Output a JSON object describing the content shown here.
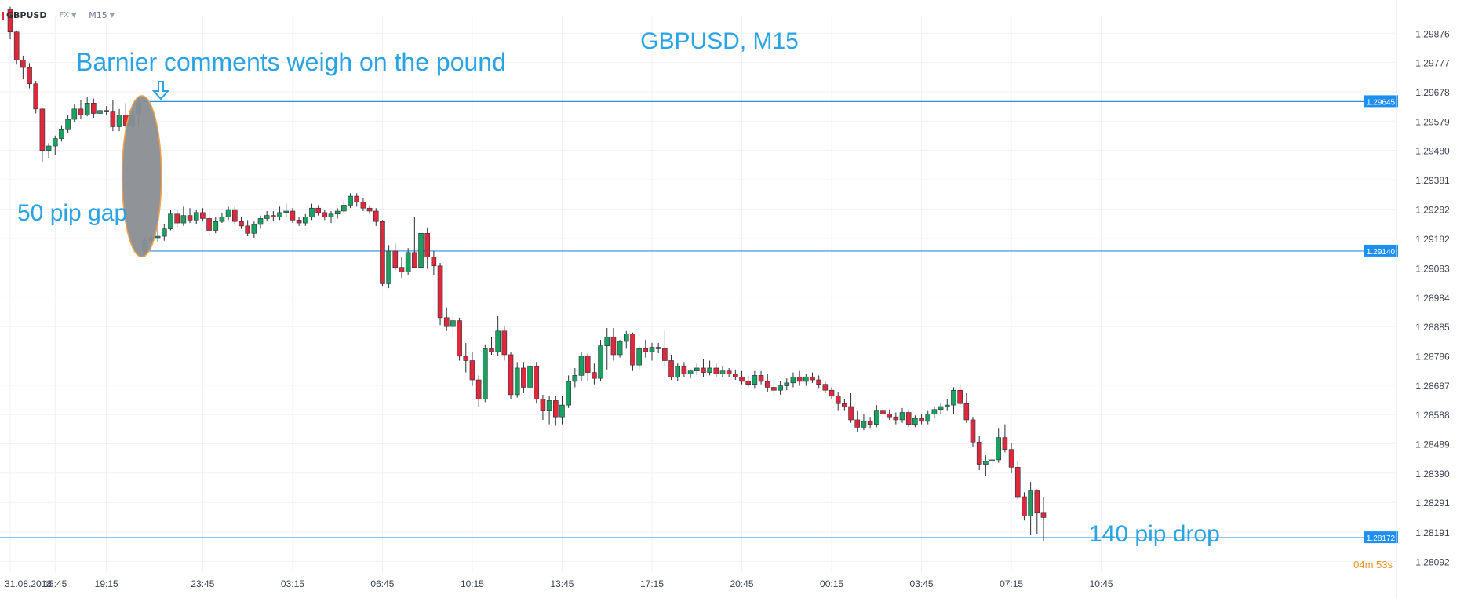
{
  "toolbar": {
    "symbol": "GBPUSD",
    "market": "FX",
    "timeframe": "M15"
  },
  "chart_data": {
    "type": "candlestick",
    "title": "GBPUSD, M15",
    "xlabel": "",
    "ylabel": "",
    "grid": true,
    "ylim": [
      1.28053,
      1.29935
    ],
    "y_ticks": [
      "1.29876",
      "1.29777",
      "1.29678",
      "1.29579",
      "1.29480",
      "1.29381",
      "1.29282",
      "1.29182",
      "1.29083",
      "1.28984",
      "1.28885",
      "1.28786",
      "1.28687",
      "1.28588",
      "1.28489",
      "1.28390",
      "1.28291",
      "1.28191",
      "1.28092"
    ],
    "x_ticks": [
      {
        "i": 0,
        "label": "31.08.2018"
      },
      {
        "i": 7,
        "label": "15:45"
      },
      {
        "i": 15,
        "label": "19:15"
      },
      {
        "i": 30,
        "label": "23:45"
      },
      {
        "i": 44,
        "label": "03:15"
      },
      {
        "i": 58,
        "label": "06:45"
      },
      {
        "i": 72,
        "label": "10:15"
      },
      {
        "i": 86,
        "label": "13:45"
      },
      {
        "i": 100,
        "label": "17:15"
      },
      {
        "i": 114,
        "label": "20:45"
      },
      {
        "i": 128,
        "label": "00:15"
      },
      {
        "i": 142,
        "label": "03:45"
      },
      {
        "i": 156,
        "label": "07:15"
      },
      {
        "i": 170,
        "label": "10:45"
      }
    ],
    "colors": {
      "up": "#1aa05f",
      "down": "#e0283c",
      "line": "#2b8de3",
      "annotation": "#29a3e3",
      "grid": "#f0f1f3",
      "countdown": "#f0901e",
      "ellipse_fill": "#8a8e93",
      "ellipse_stroke": "#f0a04a"
    },
    "hlines": [
      {
        "value": 1.29645,
        "label": "1.29645"
      },
      {
        "value": 1.2914,
        "label": "1.29140"
      },
      {
        "value": 1.28172,
        "label": "1.28172"
      }
    ],
    "countdown": "04m 53s",
    "annotations": [
      {
        "text": "Barnier comments weigh on the pound"
      },
      {
        "text": "50 pip gap"
      },
      {
        "text": "140 pip drop"
      }
    ],
    "gap_marker": {
      "candle_start": 20,
      "candle_end": 21,
      "top": 1.29665,
      "bottom": 1.2912
    },
    "candles": [
      [
        1.29955,
        1.29965,
        1.29855,
        1.2988
      ],
      [
        1.2988,
        1.29885,
        1.2977,
        1.29785
      ],
      [
        1.29785,
        1.298,
        1.2972,
        1.2976
      ],
      [
        1.2976,
        1.29775,
        1.2969,
        1.29705
      ],
      [
        1.29705,
        1.29715,
        1.29605,
        1.2962
      ],
      [
        1.2962,
        1.29625,
        1.2944,
        1.2948
      ],
      [
        1.2948,
        1.29505,
        1.29455,
        1.29495
      ],
      [
        1.29495,
        1.2953,
        1.29465,
        1.2952
      ],
      [
        1.2952,
        1.29565,
        1.2951,
        1.2955
      ],
      [
        1.2955,
        1.296,
        1.2954,
        1.29585
      ],
      [
        1.29585,
        1.29635,
        1.29575,
        1.2962
      ],
      [
        1.2962,
        1.2965,
        1.29585,
        1.296
      ],
      [
        1.296,
        1.2966,
        1.29595,
        1.2964
      ],
      [
        1.2964,
        1.29655,
        1.2959,
        1.29605
      ],
      [
        1.29605,
        1.29635,
        1.29595,
        1.29615
      ],
      [
        1.29615,
        1.2963,
        1.296,
        1.2961
      ],
      [
        1.2961,
        1.2965,
        1.29545,
        1.2956
      ],
      [
        1.2956,
        1.2962,
        1.29545,
        1.296
      ],
      [
        1.296,
        1.2964,
        1.29555,
        1.29565
      ],
      [
        1.29565,
        1.2961,
        1.29555,
        1.296
      ],
      [
        1.296,
        1.2966,
        1.2956,
        1.2964
      ],
      [
        1.2914,
        1.29185,
        1.2912,
        1.29175
      ],
      [
        1.29175,
        1.292,
        1.2916,
        1.29185
      ],
      [
        1.29185,
        1.29215,
        1.2917,
        1.2919
      ],
      [
        1.2919,
        1.2923,
        1.29175,
        1.29215
      ],
      [
        1.29215,
        1.2928,
        1.2921,
        1.29265
      ],
      [
        1.29265,
        1.2928,
        1.2922,
        1.29235
      ],
      [
        1.29235,
        1.2929,
        1.29225,
        1.2926
      ],
      [
        1.2926,
        1.29285,
        1.29235,
        1.29245
      ],
      [
        1.29245,
        1.2928,
        1.2923,
        1.2927
      ],
      [
        1.2927,
        1.29285,
        1.2924,
        1.2925
      ],
      [
        1.2925,
        1.29275,
        1.2919,
        1.2921
      ],
      [
        1.2921,
        1.29255,
        1.292,
        1.2924
      ],
      [
        1.2924,
        1.2927,
        1.29235,
        1.29255
      ],
      [
        1.29255,
        1.2929,
        1.29245,
        1.2928
      ],
      [
        1.2928,
        1.2929,
        1.2923,
        1.2924
      ],
      [
        1.2924,
        1.29255,
        1.29215,
        1.29225
      ],
      [
        1.29225,
        1.29245,
        1.2919,
        1.292
      ],
      [
        1.292,
        1.2924,
        1.29185,
        1.2923
      ],
      [
        1.2923,
        1.2926,
        1.29215,
        1.2925
      ],
      [
        1.2925,
        1.29275,
        1.2924,
        1.2926
      ],
      [
        1.2926,
        1.29275,
        1.2924,
        1.29255
      ],
      [
        1.29255,
        1.2929,
        1.29245,
        1.2927
      ],
      [
        1.2927,
        1.293,
        1.29255,
        1.29275
      ],
      [
        1.29275,
        1.29285,
        1.29235,
        1.29245
      ],
      [
        1.29245,
        1.29255,
        1.29225,
        1.29235
      ],
      [
        1.29235,
        1.29265,
        1.29225,
        1.29255
      ],
      [
        1.29255,
        1.293,
        1.29245,
        1.29285
      ],
      [
        1.29285,
        1.29295,
        1.2926,
        1.2927
      ],
      [
        1.2927,
        1.2928,
        1.29245,
        1.29255
      ],
      [
        1.29255,
        1.29275,
        1.29235,
        1.29265
      ],
      [
        1.29265,
        1.29285,
        1.2925,
        1.29275
      ],
      [
        1.29275,
        1.2931,
        1.29265,
        1.29295
      ],
      [
        1.29295,
        1.29335,
        1.29285,
        1.29325
      ],
      [
        1.29325,
        1.29335,
        1.2929,
        1.29305
      ],
      [
        1.29305,
        1.2932,
        1.29275,
        1.29285
      ],
      [
        1.29285,
        1.29295,
        1.29265,
        1.29275
      ],
      [
        1.29275,
        1.29285,
        1.29225,
        1.2924
      ],
      [
        1.2924,
        1.29245,
        1.2902,
        1.2903
      ],
      [
        1.2903,
        1.2916,
        1.29015,
        1.2914
      ],
      [
        1.2914,
        1.29165,
        1.29075,
        1.29085
      ],
      [
        1.29085,
        1.2912,
        1.2905,
        1.2907
      ],
      [
        1.2907,
        1.2915,
        1.2906,
        1.29135
      ],
      [
        1.29135,
        1.29255,
        1.29095,
        1.29085
      ],
      [
        1.29085,
        1.2923,
        1.29075,
        1.292
      ],
      [
        1.292,
        1.2922,
        1.2908,
        1.2912
      ],
      [
        1.2912,
        1.2914,
        1.2906,
        1.2909
      ],
      [
        1.2909,
        1.291,
        1.2889,
        1.28915
      ],
      [
        1.28915,
        1.2895,
        1.2887,
        1.28885
      ],
      [
        1.28885,
        1.28925,
        1.2885,
        1.28905
      ],
      [
        1.28905,
        1.28915,
        1.2877,
        1.28785
      ],
      [
        1.28785,
        1.2883,
        1.2873,
        1.2877
      ],
      [
        1.2877,
        1.288,
        1.28685,
        1.28705
      ],
      [
        1.28705,
        1.2872,
        1.28615,
        1.2864
      ],
      [
        1.2864,
        1.28825,
        1.2863,
        1.2881
      ],
      [
        1.2881,
        1.2885,
        1.2879,
        1.288
      ],
      [
        1.288,
        1.2892,
        1.28785,
        1.2887
      ],
      [
        1.2887,
        1.28885,
        1.2877,
        1.2879
      ],
      [
        1.2879,
        1.288,
        1.2864,
        1.28655
      ],
      [
        1.28655,
        1.28765,
        1.28645,
        1.28745
      ],
      [
        1.28745,
        1.28765,
        1.2866,
        1.2868
      ],
      [
        1.2868,
        1.28775,
        1.2866,
        1.2875
      ],
      [
        1.2875,
        1.28765,
        1.28625,
        1.2864
      ],
      [
        1.2864,
        1.28655,
        1.2857,
        1.286
      ],
      [
        1.286,
        1.2865,
        1.28555,
        1.28635
      ],
      [
        1.28635,
        1.2865,
        1.2855,
        1.2858
      ],
      [
        1.2858,
        1.2865,
        1.28555,
        1.2862
      ],
      [
        1.2862,
        1.2872,
        1.2861,
        1.287
      ],
      [
        1.287,
        1.28745,
        1.2868,
        1.2872
      ],
      [
        1.2872,
        1.288,
        1.287,
        1.28785
      ],
      [
        1.28785,
        1.28795,
        1.287,
        1.2873
      ],
      [
        1.2873,
        1.2876,
        1.2869,
        1.2871
      ],
      [
        1.2871,
        1.2884,
        1.287,
        1.2882
      ],
      [
        1.2882,
        1.2888,
        1.2874,
        1.2885
      ],
      [
        1.2885,
        1.2888,
        1.2877,
        1.2879
      ],
      [
        1.2879,
        1.2884,
        1.2878,
        1.28835
      ],
      [
        1.28835,
        1.2887,
        1.2881,
        1.2886
      ],
      [
        1.2886,
        1.28865,
        1.28735,
        1.28755
      ],
      [
        1.28755,
        1.2882,
        1.2874,
        1.2881
      ],
      [
        1.2881,
        1.2884,
        1.2878,
        1.288
      ],
      [
        1.288,
        1.2883,
        1.2877,
        1.28815
      ],
      [
        1.28815,
        1.2883,
        1.28795,
        1.2881
      ],
      [
        1.2881,
        1.2887,
        1.2875,
        1.2877
      ],
      [
        1.2877,
        1.2879,
        1.28705,
        1.28715
      ],
      [
        1.28715,
        1.2876,
        1.287,
        1.2875
      ],
      [
        1.2875,
        1.28765,
        1.28715,
        1.28725
      ],
      [
        1.28725,
        1.2874,
        1.2871,
        1.28735
      ],
      [
        1.28735,
        1.2876,
        1.2872,
        1.28745
      ],
      [
        1.28745,
        1.28775,
        1.28715,
        1.2873
      ],
      [
        1.2873,
        1.2877,
        1.2872,
        1.28745
      ],
      [
        1.28745,
        1.2876,
        1.28715,
        1.28725
      ],
      [
        1.28725,
        1.2875,
        1.28715,
        1.28735
      ],
      [
        1.28735,
        1.28745,
        1.28715,
        1.28725
      ],
      [
        1.28725,
        1.2874,
        1.28705,
        1.28715
      ],
      [
        1.28715,
        1.28735,
        1.2869,
        1.287
      ],
      [
        1.287,
        1.2872,
        1.2868,
        1.2869
      ],
      [
        1.2869,
        1.28735,
        1.28675,
        1.2872
      ],
      [
        1.2872,
        1.28735,
        1.2869,
        1.287
      ],
      [
        1.287,
        1.28725,
        1.28665,
        1.2868
      ],
      [
        1.2868,
        1.28705,
        1.2865,
        1.2867
      ],
      [
        1.2867,
        1.287,
        1.28655,
        1.28685
      ],
      [
        1.28685,
        1.2871,
        1.2867,
        1.28695
      ],
      [
        1.28695,
        1.2873,
        1.2868,
        1.28715
      ],
      [
        1.28715,
        1.28735,
        1.28685,
        1.287
      ],
      [
        1.287,
        1.28725,
        1.28685,
        1.28715
      ],
      [
        1.28715,
        1.2873,
        1.28695,
        1.28705
      ],
      [
        1.28705,
        1.2872,
        1.28675,
        1.2869
      ],
      [
        1.2869,
        1.287,
        1.2866,
        1.2867
      ],
      [
        1.2867,
        1.2868,
        1.2864,
        1.2865
      ],
      [
        1.2865,
        1.28665,
        1.286,
        1.28625
      ],
      [
        1.28625,
        1.2864,
        1.286,
        1.28615
      ],
      [
        1.28615,
        1.2866,
        1.2856,
        1.2857
      ],
      [
        1.2857,
        1.286,
        1.2853,
        1.28545
      ],
      [
        1.28545,
        1.2859,
        1.28535,
        1.28565
      ],
      [
        1.28565,
        1.2858,
        1.2854,
        1.28555
      ],
      [
        1.28555,
        1.2862,
        1.28545,
        1.286
      ],
      [
        1.286,
        1.2862,
        1.2857,
        1.2859
      ],
      [
        1.2859,
        1.28605,
        1.2857,
        1.2858
      ],
      [
        1.2858,
        1.28595,
        1.28555,
        1.2857
      ],
      [
        1.2857,
        1.2861,
        1.2856,
        1.28595
      ],
      [
        1.28595,
        1.28605,
        1.28545,
        1.28555
      ],
      [
        1.28555,
        1.28585,
        1.28545,
        1.28575
      ],
      [
        1.28575,
        1.2859,
        1.28555,
        1.28565
      ],
      [
        1.28565,
        1.286,
        1.28555,
        1.2859
      ],
      [
        1.2859,
        1.28615,
        1.28575,
        1.28605
      ],
      [
        1.28605,
        1.28625,
        1.2859,
        1.28615
      ],
      [
        1.28615,
        1.2864,
        1.286,
        1.2862
      ],
      [
        1.2862,
        1.2868,
        1.2859,
        1.2867
      ],
      [
        1.2867,
        1.2869,
        1.2862,
        1.28625
      ],
      [
        1.28625,
        1.2866,
        1.2856,
        1.2857
      ],
      [
        1.2857,
        1.2858,
        1.2848,
        1.28495
      ],
      [
        1.28495,
        1.28515,
        1.284,
        1.2842
      ],
      [
        1.2842,
        1.2845,
        1.2838,
        1.2843
      ],
      [
        1.2843,
        1.2846,
        1.284,
        1.28435
      ],
      [
        1.28435,
        1.2854,
        1.28425,
        1.2851
      ],
      [
        1.2851,
        1.28555,
        1.2846,
        1.2847
      ],
      [
        1.2847,
        1.2849,
        1.2839,
        1.2841
      ],
      [
        1.2841,
        1.2843,
        1.283,
        1.2831
      ],
      [
        1.2831,
        1.28325,
        1.2823,
        1.28245
      ],
      [
        1.28245,
        1.2836,
        1.2818,
        1.2833
      ],
      [
        1.2833,
        1.28335,
        1.28185,
        1.28255
      ],
      [
        1.28255,
        1.2831,
        1.2816,
        1.2824
      ]
    ]
  }
}
